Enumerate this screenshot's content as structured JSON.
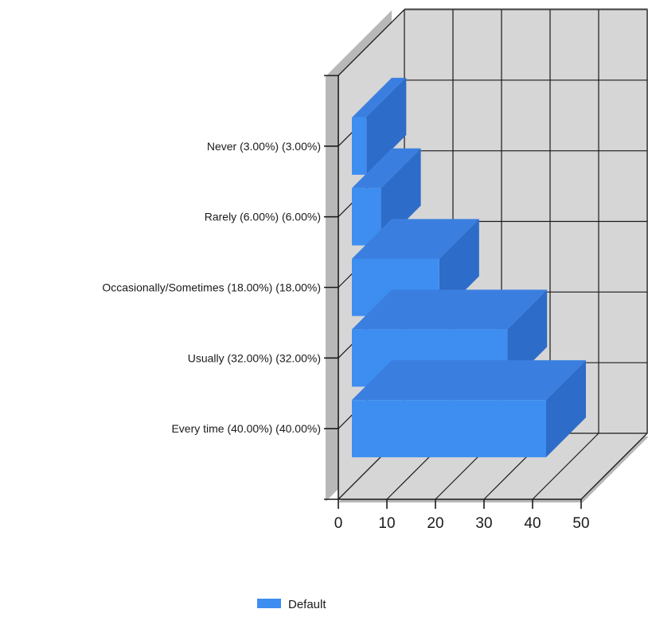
{
  "chart_data": {
    "type": "bar",
    "orientation": "horizontal",
    "three_d": true,
    "categories": [
      "Never (3.00%) (3.00%)",
      "Rarely (6.00%) (6.00%)",
      "Occasionally/Sometimes (18.00%) (18.00%)",
      "Usually (32.00%) (32.00%)",
      "Every time (40.00%) (40.00%)"
    ],
    "series": [
      {
        "name": "Default",
        "values": [
          3,
          6,
          18,
          32,
          40
        ],
        "color": "#3d8ef0"
      }
    ],
    "title": "",
    "xlabel": "",
    "ylabel": "",
    "xlim": [
      0,
      50
    ],
    "x_ticks": [
      "0",
      "10",
      "20",
      "30",
      "40",
      "50"
    ],
    "grid": true,
    "legend_position": "bottom-center"
  },
  "colors": {
    "bar_front": "#3d8ef0",
    "bar_top": "#3a7fe0",
    "bar_side": "#2d6cc8",
    "wall": "#d6d6d6",
    "wall_shadow": "#b8b8b8",
    "grid": "#1a1a1a"
  }
}
